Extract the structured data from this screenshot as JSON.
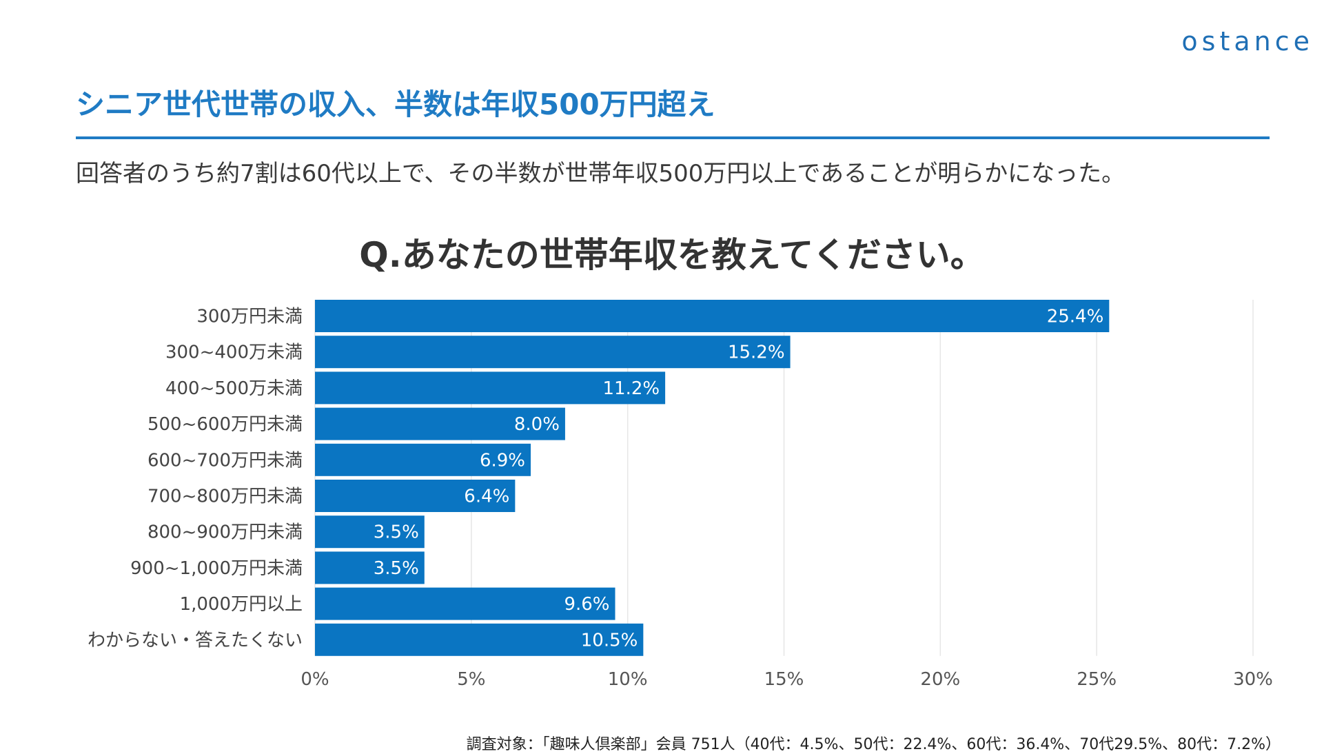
{
  "brand": {
    "logo_text": "ostance"
  },
  "header": {
    "headline": "シニア世代世帯の収入、半数は年収500万円超え",
    "subtitle": "回答者のうち約7割は60代以上で、その半数が世帯年収500万円以上であることが明らかになった。"
  },
  "chart_data": {
    "type": "bar",
    "orientation": "horizontal",
    "title": "Q.あなたの世帯年収を教えてください。",
    "categories": [
      "300万円未満",
      "300~400万未満",
      "400~500万未満",
      "500~600万円未満",
      "600~700万円未満",
      "700~800万円未満",
      "800~900万円未満",
      "900~1,000万円未満",
      "1,000万円以上",
      "わからない・答えたくない"
    ],
    "values": [
      25.4,
      15.2,
      11.2,
      8.0,
      6.9,
      6.4,
      3.5,
      3.5,
      9.6,
      10.5
    ],
    "value_labels": [
      "25.4%",
      "15.2%",
      "11.2%",
      "8.0%",
      "6.9%",
      "6.4%",
      "3.5%",
      "3.5%",
      "9.6%",
      "10.5%"
    ],
    "xlim": [
      0,
      30
    ],
    "xticks": [
      0,
      5,
      10,
      15,
      20,
      25,
      30
    ],
    "xtick_labels": [
      "0%",
      "5%",
      "10%",
      "15%",
      "20%",
      "25%",
      "30%"
    ],
    "grid": true,
    "bar_color": "#0a75c2",
    "grid_color": "#e6e6e6"
  },
  "footnote": "調査対象：「趣味人倶楽部」会員 751人（40代：4.5%、50代：22.4%、60代：36.4%、70代29.5%、80代：7.2%）"
}
